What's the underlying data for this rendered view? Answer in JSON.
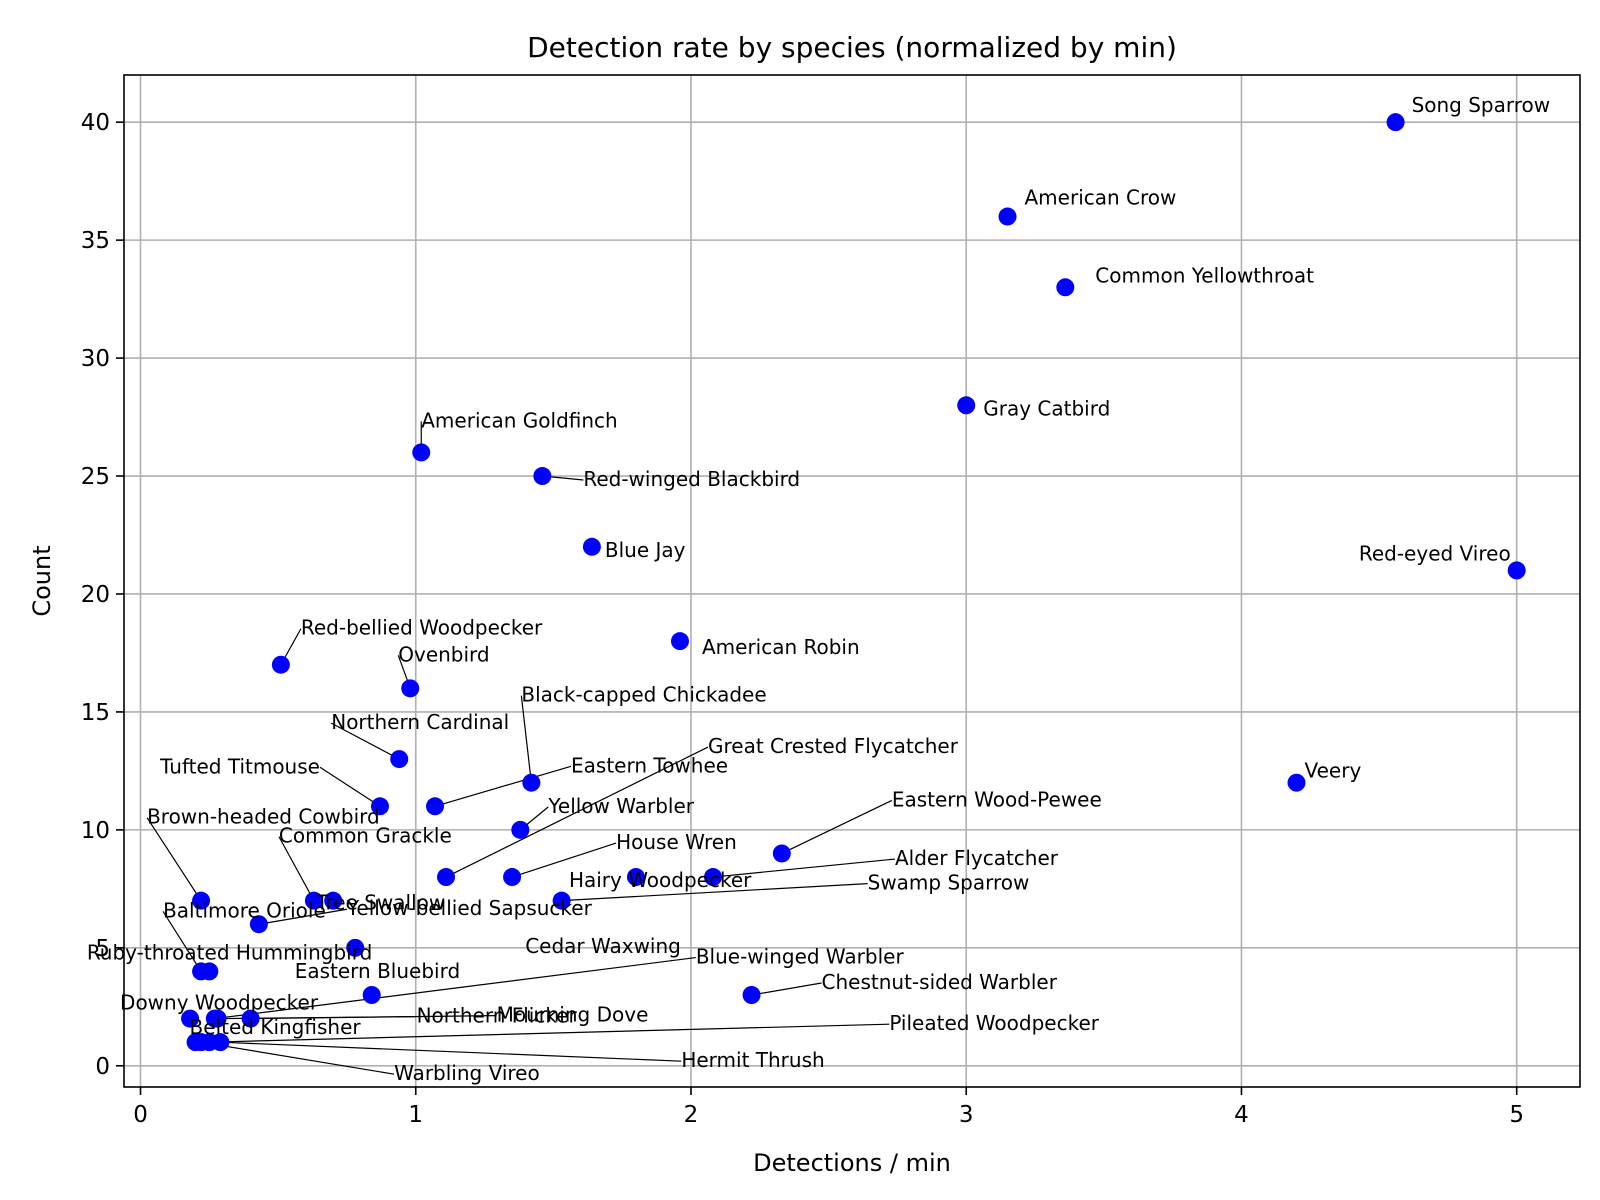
{
  "chart_data": {
    "type": "scatter",
    "title": "Detection rate by species (normalized by min)",
    "xlabel": "Detections / min",
    "ylabel": "Count",
    "xlim": [
      -0.06,
      5.23
    ],
    "ylim": [
      -0.9,
      42
    ],
    "xticks": [
      0,
      1,
      2,
      3,
      4,
      5
    ],
    "yticks": [
      0,
      5,
      10,
      15,
      20,
      25,
      30,
      35,
      40
    ],
    "grid": true,
    "marker_color": "#0000ff",
    "points": [
      {
        "label": "Song Sparrow",
        "x": 4.56,
        "y": 40
      },
      {
        "label": "American Crow",
        "x": 3.15,
        "y": 36
      },
      {
        "label": "Common Yellowthroat",
        "x": 3.36,
        "y": 33
      },
      {
        "label": "Gray Catbird",
        "x": 3.0,
        "y": 28
      },
      {
        "label": "American Goldfinch",
        "x": 1.02,
        "y": 26
      },
      {
        "label": "Red-winged Blackbird",
        "x": 1.46,
        "y": 25
      },
      {
        "label": "Blue Jay",
        "x": 1.64,
        "y": 22
      },
      {
        "label": "Red-eyed Vireo",
        "x": 5.0,
        "y": 21
      },
      {
        "label": "American Robin",
        "x": 1.96,
        "y": 18
      },
      {
        "label": "Red-bellied Woodpecker",
        "x": 0.51,
        "y": 17
      },
      {
        "label": "Ovenbird",
        "x": 0.98,
        "y": 16
      },
      {
        "label": "Northern Cardinal",
        "x": 0.94,
        "y": 13
      },
      {
        "label": "Black-capped Chickadee",
        "x": 1.42,
        "y": 12
      },
      {
        "label": "Veery",
        "x": 4.2,
        "y": 12
      },
      {
        "label": "Tufted Titmouse",
        "x": 0.87,
        "y": 11
      },
      {
        "label": "Eastern Towhee",
        "x": 1.07,
        "y": 11
      },
      {
        "label": "Yellow Warbler",
        "x": 1.38,
        "y": 10
      },
      {
        "label": "Eastern Wood-Pewee",
        "x": 2.33,
        "y": 9
      },
      {
        "label": "Great Crested Flycatcher",
        "x": 1.11,
        "y": 8
      },
      {
        "label": "House Wren",
        "x": 1.35,
        "y": 8
      },
      {
        "label": "Hairy Woodpecker",
        "x": 1.8,
        "y": 8
      },
      {
        "label": "Alder Flycatcher",
        "x": 2.08,
        "y": 8
      },
      {
        "label": "Brown-headed Cowbird",
        "x": 0.22,
        "y": 7
      },
      {
        "label": "Common Grackle",
        "x": 0.63,
        "y": 7
      },
      {
        "label": "Tree Swallow",
        "x": 0.7,
        "y": 7
      },
      {
        "label": "Swamp Sparrow",
        "x": 1.53,
        "y": 7
      },
      {
        "label": "Yellow-bellied Sapsucker",
        "x": 0.43,
        "y": 6
      },
      {
        "label": "Cedar Waxwing",
        "x": 0.78,
        "y": 5
      },
      {
        "label": "Baltimore Oriole",
        "x": 0.22,
        "y": 4
      },
      {
        "label": "Ruby-throated Hummingbird",
        "x": 0.25,
        "y": 4
      },
      {
        "label": "Eastern Bluebird",
        "x": 0.84,
        "y": 3
      },
      {
        "label": "Blue-winged Warbler",
        "x": 0.27,
        "y": 2
      },
      {
        "label": "Chestnut-sided Warbler",
        "x": 2.22,
        "y": 3
      },
      {
        "label": "Downy Woodpecker",
        "x": 0.18,
        "y": 2
      },
      {
        "label": "Northern Flicker",
        "x": 0.28,
        "y": 2
      },
      {
        "label": "Mourning Dove",
        "x": 0.4,
        "y": 2
      },
      {
        "label": "Belted Kingfisher",
        "x": 0.2,
        "y": 1
      },
      {
        "label": "Pileated Woodpecker",
        "x": 0.25,
        "y": 1
      },
      {
        "label": "Hermit Thrush",
        "x": 0.29,
        "y": 1
      },
      {
        "label": "Warbling Vireo",
        "x": 0.22,
        "y": 1
      }
    ]
  }
}
